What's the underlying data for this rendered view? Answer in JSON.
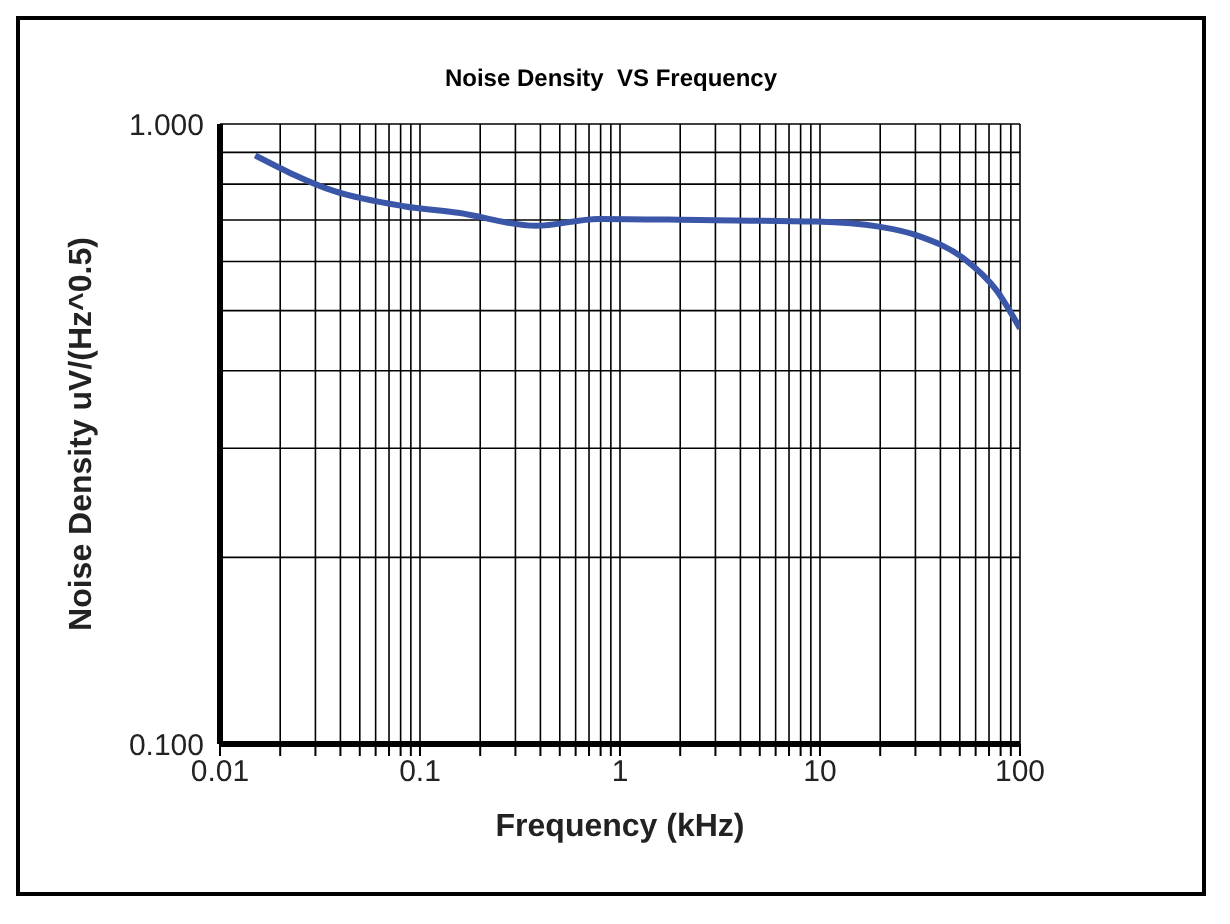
{
  "chart_data": {
    "type": "line",
    "title": "Noise Density  VS Frequency",
    "xlabel": "Frequency (kHz)",
    "ylabel": "Noise Density uV/(Hz^0.5)",
    "x": [
      0.015,
      0.037,
      0.083,
      0.155,
      0.38,
      0.78,
      2.5,
      9.6,
      19.7,
      31,
      53,
      76,
      100
    ],
    "series": [
      {
        "color": "#3a56a8",
        "values": [
          0.89,
          0.78,
          0.737,
          0.719,
          0.685,
          0.703,
          0.7,
          0.696,
          0.683,
          0.66,
          0.605,
          0.54,
          0.468
        ]
      }
    ],
    "log": "xy",
    "xlim": [
      0.01,
      100
    ],
    "ylim": [
      0.1,
      1
    ],
    "xticks": [
      0.01,
      {
        "value": 0.02,
        "label": null
      },
      {
        "value": 0.03,
        "label": null
      },
      {
        "value": 0.04,
        "label": null
      },
      {
        "value": 0.05,
        "label": null
      },
      {
        "value": 0.06,
        "label": null
      },
      {
        "value": 0.07,
        "label": null
      },
      {
        "value": 0.08,
        "label": null
      },
      {
        "value": 0.09,
        "label": null
      },
      0.1,
      {
        "value": 0.2,
        "label": null
      },
      {
        "value": 0.3,
        "label": null
      },
      {
        "value": 0.4,
        "label": null
      },
      {
        "value": 0.5,
        "label": null
      },
      {
        "value": 0.6,
        "label": null
      },
      {
        "value": 0.7,
        "label": null
      },
      {
        "value": 0.8,
        "label": null
      },
      {
        "value": 0.9,
        "label": null
      },
      1,
      {
        "value": 2,
        "label": null
      },
      {
        "value": 3,
        "label": null
      },
      {
        "value": 4,
        "label": null
      },
      {
        "value": 5,
        "label": null
      },
      {
        "value": 6,
        "label": null
      },
      {
        "value": 7,
        "label": null
      },
      {
        "value": 8,
        "label": null
      },
      {
        "value": 9,
        "label": null
      },
      10,
      {
        "value": 20,
        "label": null
      },
      {
        "value": 30,
        "label": null
      },
      {
        "value": 40,
        "label": null
      },
      {
        "value": 50,
        "label": null
      },
      {
        "value": 60,
        "label": null
      },
      {
        "value": 70,
        "label": null
      },
      {
        "value": 80,
        "label": null
      },
      {
        "value": 90,
        "label": null
      },
      100
    ],
    "yticks": [
      {
        "value": 0.1,
        "label": "0.100"
      },
      {
        "value": 0.2,
        "label": null
      },
      {
        "value": 0.3,
        "label": null
      },
      {
        "value": 0.4,
        "label": null
      },
      {
        "value": 0.5,
        "label": null
      },
      {
        "value": 0.6,
        "label": null
      },
      {
        "value": 0.7,
        "label": null
      },
      {
        "value": 0.8,
        "label": null
      },
      {
        "value": 0.9,
        "label": null
      },
      {
        "value": 1,
        "label": "1.000"
      }
    ],
    "grid": true,
    "marker": "none",
    "line_style": "solid"
  }
}
